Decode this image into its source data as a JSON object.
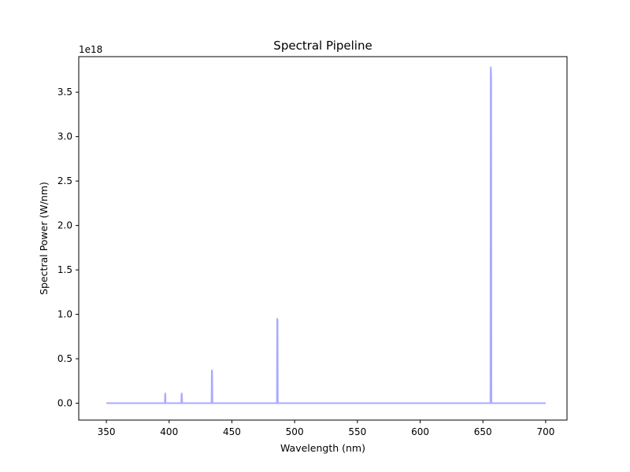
{
  "chart_data": {
    "type": "line",
    "title": "Spectral Pipeline",
    "xlabel": "Wavelength (nm)",
    "ylabel": "Spectral Power (W/nm)",
    "y_offset_label": "1e18",
    "y_scale_factor": 1e+18,
    "xlim": [
      328,
      717
    ],
    "ylim": [
      -0.19,
      3.9
    ],
    "x_ticks": [
      350,
      400,
      450,
      500,
      550,
      600,
      650,
      700
    ],
    "x_tick_labels": [
      "350",
      "400",
      "450",
      "500",
      "550",
      "600",
      "650",
      "700"
    ],
    "y_ticks": [
      0.0,
      0.5,
      1.0,
      1.5,
      2.0,
      2.5,
      3.0,
      3.5
    ],
    "y_tick_labels": [
      "0.0",
      "0.5",
      "1.0",
      "1.5",
      "2.0",
      "2.5",
      "3.0",
      "3.5"
    ],
    "grid": false,
    "series": [
      {
        "color": "#aaaaff",
        "x": [
          350,
          396.6,
          396.8,
          396.9,
          397.0,
          397.2,
          409.7,
          409.9,
          410.0,
          410.1,
          410.2,
          410.4,
          433.8,
          434.0,
          434.05,
          434.2,
          434.3,
          434.5,
          485.9,
          486.1,
          486.15,
          486.3,
          486.4,
          486.6,
          656.0,
          656.2,
          656.3,
          656.4,
          656.6,
          656.8,
          700
        ],
        "y": [
          0.0,
          0.0,
          0.1,
          0.11,
          0.1,
          0.0,
          0.0,
          0.09,
          0.11,
          0.1,
          0.09,
          0.0,
          0.0,
          0.34,
          0.37,
          0.36,
          0.34,
          0.0,
          0.0,
          0.93,
          0.95,
          0.94,
          0.92,
          0.0,
          0.0,
          3.7,
          3.78,
          3.75,
          3.67,
          0.0,
          0.0
        ]
      }
    ]
  }
}
